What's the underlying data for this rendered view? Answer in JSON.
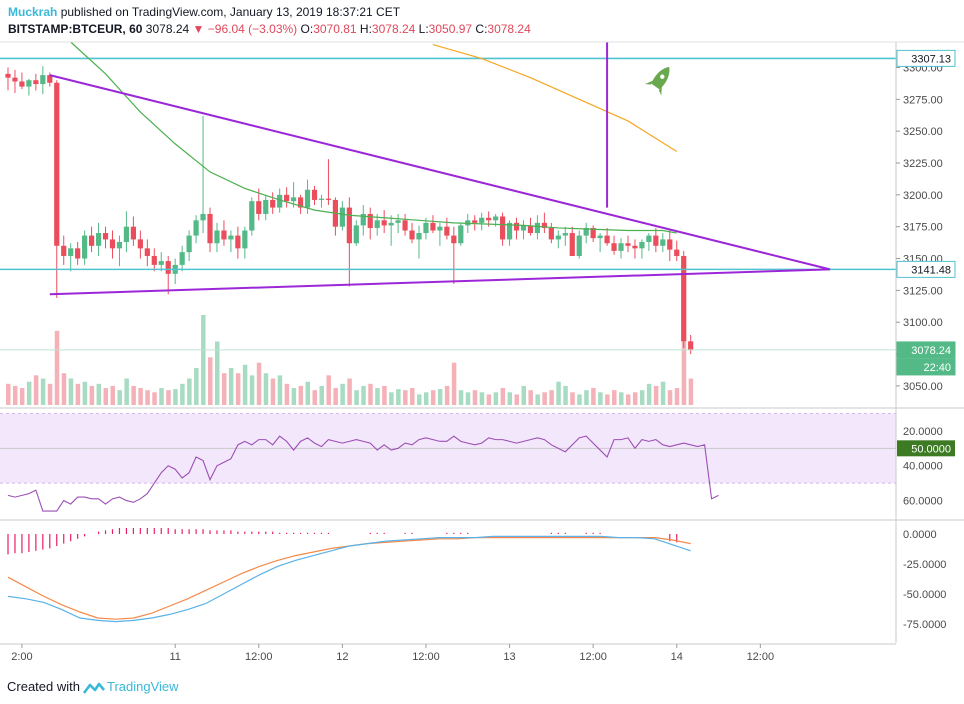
{
  "header": {
    "author": "Muckrah",
    "published": "published on TradingView.com, January 13, 2019 18:37:21 CET",
    "symbol": "BITSTAMP:BTCEUR, 60",
    "last": "3078.24",
    "change": "−96.04 (−3.03%)",
    "o_label": "O:",
    "o_value": "3070.81",
    "h_label": "H:",
    "h_value": "3078.24",
    "l_label": "L:",
    "l_value": "3050.97",
    "c_label": "C:",
    "c_value": "3078.24"
  },
  "footer": {
    "created_with": "Created with",
    "brand": "TradingView"
  },
  "colors": {
    "up": "#53b987",
    "down": "#eb4d5c",
    "level": "#4fc3d0",
    "trendline": "#9c27d8",
    "ma_fast": "#4caf50",
    "ma_slow": "#f5a623",
    "rsi": "#9c4fb5",
    "macd": "#5ab2e8",
    "signal": "#f5894a",
    "hist": "#e91e63"
  },
  "chart_data": [
    {
      "type": "candlestick",
      "title": "BITSTAMP:BTCEUR, 60",
      "ylim": [
        3035,
        3320
      ],
      "yticks": [
        3050,
        3075,
        3100,
        3125,
        3150,
        3175,
        3200,
        3225,
        3250,
        3275,
        3300
      ],
      "xticks": [
        "2:00",
        "11",
        "12:00",
        "12",
        "12:00",
        "13",
        "12:00",
        "14",
        "12:00"
      ],
      "xtick_hours": [
        2,
        24,
        36,
        48,
        60,
        72,
        84,
        96,
        108
      ],
      "horizontal_levels": [
        3307.13,
        3141.48
      ],
      "price_labels": [
        "3307.13",
        "3141.48",
        "3078.24",
        "22:40"
      ],
      "trendlines": [
        {
          "from": [
            6,
            3294
          ],
          "to": [
            118,
            3141.48
          ]
        },
        {
          "from": [
            6,
            3122
          ],
          "to": [
            118,
            3141.48
          ]
        }
      ],
      "vertical_line_hour": 86,
      "candles_ohlc": [
        [
          3295,
          3300,
          3282,
          3292
        ],
        [
          3292,
          3298,
          3280,
          3289
        ],
        [
          3289,
          3296,
          3283,
          3285
        ],
        [
          3285,
          3291,
          3278,
          3290
        ],
        [
          3290,
          3295,
          3282,
          3287
        ],
        [
          3287,
          3301,
          3279,
          3294
        ],
        [
          3294,
          3296,
          3285,
          3288
        ],
        [
          3288,
          3290,
          3119,
          3160
        ],
        [
          3160,
          3168,
          3145,
          3152
        ],
        [
          3152,
          3162,
          3140,
          3158
        ],
        [
          3158,
          3163,
          3145,
          3150
        ],
        [
          3150,
          3172,
          3145,
          3168
        ],
        [
          3168,
          3175,
          3155,
          3160
        ],
        [
          3160,
          3178,
          3152,
          3170
        ],
        [
          3170,
          3175,
          3158,
          3165
        ],
        [
          3165,
          3172,
          3150,
          3158
        ],
        [
          3158,
          3168,
          3144,
          3163
        ],
        [
          3163,
          3187,
          3155,
          3175
        ],
        [
          3175,
          3183,
          3160,
          3165
        ],
        [
          3165,
          3172,
          3150,
          3158
        ],
        [
          3158,
          3165,
          3144,
          3152
        ],
        [
          3152,
          3158,
          3140,
          3145
        ],
        [
          3145,
          3155,
          3140,
          3148
        ],
        [
          3148,
          3152,
          3122,
          3138
        ],
        [
          3138,
          3150,
          3130,
          3145
        ],
        [
          3145,
          3160,
          3140,
          3155
        ],
        [
          3155,
          3172,
          3148,
          3168
        ],
        [
          3168,
          3184,
          3162,
          3180
        ],
        [
          3180,
          3262,
          3170,
          3185
        ],
        [
          3185,
          3190,
          3155,
          3162
        ],
        [
          3162,
          3178,
          3155,
          3172
        ],
        [
          3172,
          3180,
          3160,
          3165
        ],
        [
          3165,
          3172,
          3155,
          3168
        ],
        [
          3168,
          3175,
          3150,
          3158
        ],
        [
          3158,
          3175,
          3150,
          3172
        ],
        [
          3172,
          3198,
          3168,
          3195
        ],
        [
          3195,
          3205,
          3180,
          3185
        ],
        [
          3185,
          3200,
          3180,
          3196
        ],
        [
          3196,
          3202,
          3185,
          3190
        ],
        [
          3190,
          3205,
          3186,
          3200
        ],
        [
          3200,
          3206,
          3190,
          3195
        ],
        [
          3195,
          3210,
          3190,
          3198
        ],
        [
          3198,
          3200,
          3185,
          3190
        ],
        [
          3190,
          3212,
          3185,
          3204
        ],
        [
          3204,
          3207,
          3192,
          3196
        ],
        [
          3196,
          3200,
          3190,
          3197
        ],
        [
          3197,
          3228,
          3192,
          3196
        ],
        [
          3196,
          3198,
          3168,
          3175
        ],
        [
          3175,
          3195,
          3172,
          3190
        ],
        [
          3190,
          3198,
          3128,
          3162
        ],
        [
          3162,
          3180,
          3160,
          3176
        ],
        [
          3176,
          3192,
          3168,
          3185
        ],
        [
          3185,
          3190,
          3165,
          3174
        ],
        [
          3174,
          3185,
          3168,
          3180
        ],
        [
          3180,
          3188,
          3170,
          3176
        ],
        [
          3176,
          3184,
          3160,
          3178
        ],
        [
          3178,
          3185,
          3170,
          3180
        ],
        [
          3180,
          3185,
          3168,
          3172
        ],
        [
          3172,
          3178,
          3162,
          3165
        ],
        [
          3165,
          3176,
          3150,
          3170
        ],
        [
          3170,
          3182,
          3165,
          3178
        ],
        [
          3178,
          3184,
          3170,
          3172
        ],
        [
          3172,
          3178,
          3160,
          3175
        ],
        [
          3175,
          3182,
          3165,
          3168
        ],
        [
          3168,
          3175,
          3130,
          3162
        ],
        [
          3162,
          3178,
          3160,
          3176
        ],
        [
          3176,
          3185,
          3170,
          3180
        ],
        [
          3180,
          3184,
          3172,
          3178
        ],
        [
          3178,
          3186,
          3172,
          3182
        ],
        [
          3182,
          3187,
          3175,
          3180
        ],
        [
          3180,
          3185,
          3175,
          3183
        ],
        [
          3183,
          3186,
          3160,
          3165
        ],
        [
          3165,
          3180,
          3160,
          3178
        ],
        [
          3178,
          3182,
          3165,
          3172
        ],
        [
          3172,
          3180,
          3165,
          3176
        ],
        [
          3176,
          3182,
          3168,
          3170
        ],
        [
          3170,
          3184,
          3165,
          3178
        ],
        [
          3178,
          3186,
          3170,
          3174
        ],
        [
          3174,
          3178,
          3162,
          3165
        ],
        [
          3165,
          3172,
          3158,
          3168
        ],
        [
          3168,
          3175,
          3160,
          3170
        ],
        [
          3170,
          3175,
          3155,
          3152
        ],
        [
          3152,
          3172,
          3150,
          3168
        ],
        [
          3168,
          3178,
          3162,
          3174
        ],
        [
          3174,
          3176,
          3163,
          3166
        ],
        [
          3166,
          3170,
          3155,
          3168
        ],
        [
          3168,
          3174,
          3160,
          3162
        ],
        [
          3162,
          3168,
          3153,
          3156
        ],
        [
          3156,
          3166,
          3150,
          3162
        ],
        [
          3162,
          3168,
          3155,
          3160
        ],
        [
          3160,
          3165,
          3150,
          3158
        ],
        [
          3158,
          3165,
          3150,
          3163
        ],
        [
          3163,
          3170,
          3156,
          3168
        ],
        [
          3168,
          3174,
          3155,
          3160
        ],
        [
          3160,
          3170,
          3155,
          3165
        ],
        [
          3165,
          3172,
          3148,
          3157
        ],
        [
          3157,
          3164,
          3148,
          3152
        ],
        [
          3152,
          3156,
          3080,
          3085
        ],
        [
          3085,
          3090,
          3075,
          3078
        ]
      ],
      "ma_fast": [
        [
          9,
          3320
        ],
        [
          14,
          3295
        ],
        [
          19,
          3265
        ],
        [
          24,
          3240
        ],
        [
          29,
          3218
        ],
        [
          34,
          3205
        ],
        [
          39,
          3196
        ],
        [
          44,
          3188
        ],
        [
          49,
          3184
        ],
        [
          54,
          3182
        ],
        [
          59,
          3180
        ],
        [
          64,
          3178
        ],
        [
          69,
          3177
        ],
        [
          74,
          3176
        ],
        [
          79,
          3174
        ],
        [
          84,
          3173
        ],
        [
          89,
          3172
        ],
        [
          94,
          3172
        ],
        [
          96,
          3170
        ]
      ],
      "ma_slow": [
        [
          61,
          3318
        ],
        [
          68,
          3307
        ],
        [
          75,
          3292
        ],
        [
          82,
          3275
        ],
        [
          89,
          3258
        ],
        [
          96,
          3234
        ]
      ]
    },
    {
      "type": "bar",
      "title": "Volume",
      "values": [
        20,
        18,
        16,
        22,
        28,
        25,
        20,
        70,
        30,
        25,
        20,
        22,
        18,
        20,
        16,
        18,
        14,
        25,
        18,
        16,
        14,
        12,
        16,
        14,
        15,
        20,
        25,
        35,
        85,
        45,
        60,
        30,
        35,
        30,
        38,
        28,
        40,
        30,
        25,
        28,
        20,
        16,
        18,
        22,
        14,
        18,
        28,
        16,
        20,
        25,
        14,
        18,
        20,
        16,
        18,
        12,
        15,
        14,
        16,
        10,
        12,
        14,
        15,
        18,
        40,
        14,
        12,
        14,
        12,
        10,
        12,
        16,
        12,
        10,
        18,
        14,
        10,
        12,
        14,
        22,
        18,
        12,
        10,
        14,
        16,
        12,
        10,
        14,
        12,
        10,
        12,
        14,
        20,
        18,
        22,
        14,
        16,
        60,
        25
      ]
    },
    {
      "type": "line",
      "title": "RSI",
      "ylim": [
        10,
        72
      ],
      "yticks": [
        20,
        40,
        60
      ],
      "reference_line": 50,
      "reference_label": "50.0000",
      "tick_labels": [
        "60.0000",
        "40.0000",
        "20.0000"
      ],
      "values": [
        23,
        22,
        23,
        24,
        26,
        14,
        14,
        14,
        20,
        18,
        22,
        22,
        21,
        21,
        18,
        21,
        22,
        20,
        19,
        21,
        24,
        30,
        36,
        40,
        38,
        33,
        36,
        45,
        43,
        32,
        40,
        42,
        44,
        52,
        54,
        52,
        55,
        55,
        52,
        57,
        54,
        49,
        54,
        56,
        53,
        51,
        55,
        54,
        53,
        54,
        55,
        54,
        53,
        49,
        52,
        49,
        50,
        53,
        52,
        55,
        56,
        55,
        54,
        54,
        57,
        54,
        53,
        52,
        53,
        56,
        55,
        55,
        54,
        53,
        54,
        55,
        56,
        55,
        52,
        50,
        48,
        52,
        56,
        57,
        53,
        49,
        45,
        55,
        55,
        56,
        50,
        55,
        54,
        55,
        52,
        51,
        52,
        53,
        52,
        51,
        52,
        21,
        23
      ]
    },
    {
      "type": "line",
      "title": "MACD",
      "ylim": [
        -90,
        10
      ],
      "yticks": [
        0,
        -25,
        -50,
        -75
      ],
      "tick_labels": [
        "0.0000",
        "-25.0000",
        "-50.0000",
        "-75.0000"
      ],
      "macd": [
        -52,
        -54,
        -57,
        -63,
        -70,
        -72,
        -73,
        -72,
        -70,
        -67,
        -63,
        -58,
        -50,
        -42,
        -34,
        -27,
        -22,
        -18,
        -14,
        -10,
        -8,
        -6,
        -5,
        -4,
        -3,
        -3,
        -3,
        -2,
        -2,
        -2,
        -2,
        -2,
        -2,
        -2,
        -3,
        -3,
        -4,
        -9,
        -14
      ],
      "signal": [
        -36,
        -44,
        -52,
        -59,
        -65,
        -70,
        -71,
        -70,
        -66,
        -60,
        -54,
        -47,
        -40,
        -33,
        -27,
        -22,
        -18,
        -15,
        -12,
        -10,
        -8,
        -7,
        -6,
        -5,
        -4,
        -4,
        -3,
        -3,
        -3,
        -3,
        -3,
        -3,
        -3,
        -3,
        -3,
        -3,
        -3,
        -5,
        -8
      ],
      "histogram": [
        -17,
        -16,
        -16,
        -15,
        -14,
        -13,
        -12,
        -10,
        -8,
        -6,
        -4,
        -2,
        0,
        2,
        3,
        4,
        5,
        5,
        5,
        5,
        5,
        5,
        5,
        5,
        4,
        4,
        4,
        4,
        4,
        3,
        3,
        3,
        3,
        2,
        2,
        2,
        2,
        2,
        2,
        1,
        1,
        1,
        1,
        1,
        1,
        1,
        1,
        0,
        0,
        0,
        0,
        0,
        1,
        1,
        1,
        0,
        0,
        1,
        1,
        0,
        0,
        0,
        0,
        1,
        1,
        1,
        1,
        0,
        0,
        0,
        0,
        0,
        0,
        0,
        0,
        0,
        0,
        0,
        1,
        1,
        1,
        0,
        0,
        1,
        1,
        1,
        0,
        0,
        0,
        0,
        0,
        0,
        0,
        0,
        0,
        -6,
        -7
      ]
    }
  ],
  "time_axis_labels": [
    "2:00",
    "11",
    "12:00",
    "12",
    "12:00",
    "13",
    "12:00",
    "14",
    "12:00"
  ]
}
